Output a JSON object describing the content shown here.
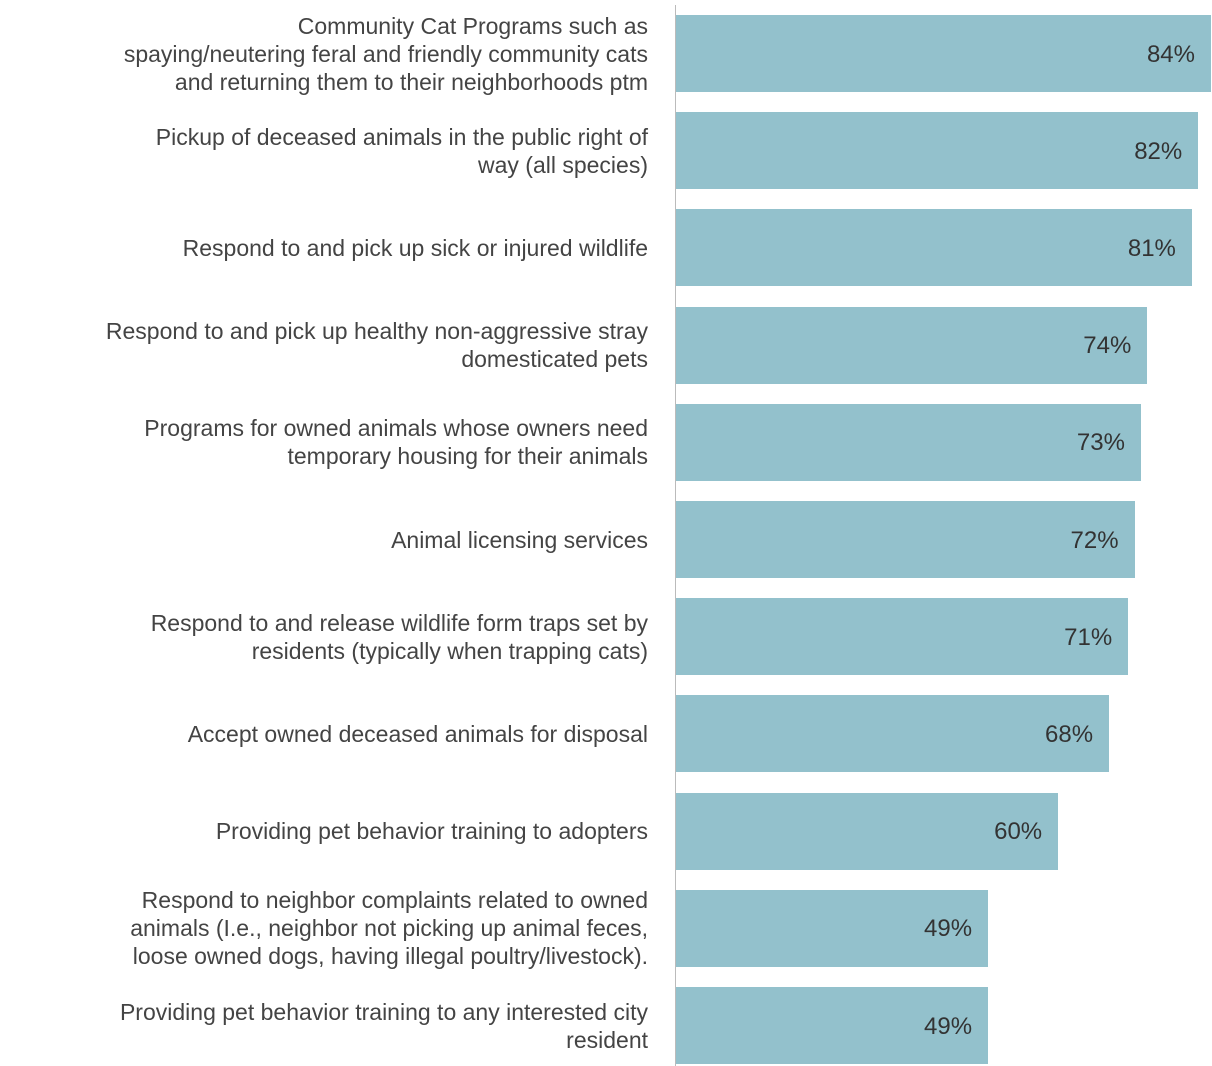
{
  "chart_data": {
    "type": "bar",
    "orientation": "horizontal",
    "categories": [
      "Community Cat Programs such as\nspaying/neutering feral and friendly community cats\nand returning them to their neighborhoods ptm",
      "Pickup of deceased animals in the public right of\nway (all species)",
      "Respond to and pick up sick or injured wildlife",
      "Respond to and pick up healthy non-aggressive stray\ndomesticated pets",
      "Programs for owned animals whose owners need\ntemporary housing for their animals",
      "Animal licensing services",
      "Respond to and release wildlife form traps set by\nresidents (typically when trapping cats)",
      "Accept owned deceased animals for disposal",
      "Providing pet behavior training to adopters",
      "Respond to neighbor complaints related to owned\nanimals (I.e., neighbor not picking up animal feces,\nloose owned dogs, having illegal poultry/livestock).",
      "Providing pet behavior training to any interested city\nresident"
    ],
    "values": [
      84,
      82,
      81,
      74,
      73,
      72,
      71,
      68,
      60,
      49,
      49
    ],
    "value_labels": [
      "84%",
      "82%",
      "81%",
      "74%",
      "73%",
      "72%",
      "71%",
      "68%",
      "60%",
      "49%",
      "49%"
    ],
    "color": "#93c1cc"
  }
}
